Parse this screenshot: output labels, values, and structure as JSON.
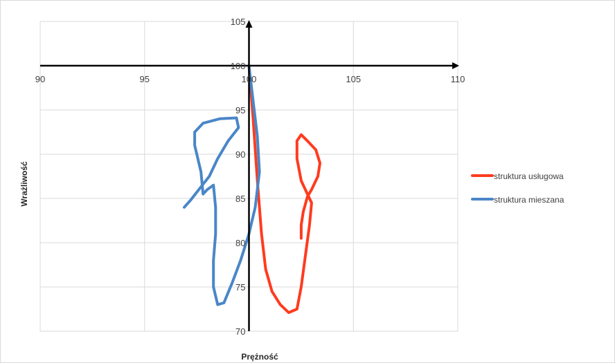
{
  "chart_data": {
    "type": "line",
    "title": "",
    "xlabel": "Prężność",
    "ylabel": "Wrażliwość",
    "xlim": [
      90,
      110
    ],
    "ylim": [
      70,
      105
    ],
    "x_ticks": [
      "90",
      "95",
      "100",
      "105",
      "110"
    ],
    "y_ticks": [
      "70",
      "75",
      "80",
      "85",
      "90",
      "95",
      "100",
      "105"
    ],
    "x_tick_values": [
      90,
      95,
      100,
      105,
      110
    ],
    "y_tick_values": [
      70,
      75,
      80,
      85,
      90,
      95,
      100,
      105
    ],
    "axis_crossing": {
      "x": 100,
      "y": 100
    },
    "grid": true,
    "legend_position": "right",
    "series": [
      {
        "name": "struktura usługowa",
        "color": "#ff3b1f",
        "points": [
          [
            100.0,
            100.0
          ],
          [
            100.2,
            94.0
          ],
          [
            100.4,
            87.0
          ],
          [
            100.6,
            81.0
          ],
          [
            100.8,
            77.0
          ],
          [
            101.1,
            74.5
          ],
          [
            101.5,
            73.0
          ],
          [
            101.9,
            72.1
          ],
          [
            102.3,
            72.5
          ],
          [
            102.5,
            75.0
          ],
          [
            102.7,
            78.5
          ],
          [
            102.9,
            82.0
          ],
          [
            103.0,
            84.5
          ],
          [
            102.8,
            85.5
          ],
          [
            102.5,
            87.0
          ],
          [
            102.3,
            89.5
          ],
          [
            102.3,
            91.5
          ],
          [
            102.5,
            92.2
          ],
          [
            102.8,
            91.5
          ],
          [
            103.2,
            90.5
          ],
          [
            103.4,
            89.0
          ],
          [
            103.3,
            87.5
          ],
          [
            103.0,
            86.0
          ],
          [
            102.8,
            85.2
          ],
          [
            102.6,
            83.5
          ],
          [
            102.5,
            82.0
          ],
          [
            102.5,
            80.5
          ]
        ]
      },
      {
        "name": "struktura mieszana",
        "color": "#4a86c8",
        "points": [
          [
            100.0,
            100.0
          ],
          [
            100.2,
            96.0
          ],
          [
            100.4,
            92.0
          ],
          [
            100.5,
            88.0
          ],
          [
            100.3,
            84.0
          ],
          [
            100.0,
            81.0
          ],
          [
            99.6,
            78.0
          ],
          [
            99.2,
            75.5
          ],
          [
            98.8,
            73.2
          ],
          [
            98.5,
            73.0
          ],
          [
            98.3,
            75.0
          ],
          [
            98.3,
            78.0
          ],
          [
            98.4,
            81.0
          ],
          [
            98.4,
            84.0
          ],
          [
            98.3,
            86.5
          ],
          [
            98.0,
            86.0
          ],
          [
            97.8,
            85.5
          ],
          [
            97.7,
            88.0
          ],
          [
            97.4,
            91.0
          ],
          [
            97.4,
            92.5
          ],
          [
            97.8,
            93.5
          ],
          [
            98.6,
            94.0
          ],
          [
            99.4,
            94.1
          ],
          [
            99.5,
            93.0
          ],
          [
            99.0,
            91.5
          ],
          [
            98.5,
            89.5
          ],
          [
            98.1,
            87.5
          ],
          [
            97.6,
            86.0
          ],
          [
            97.2,
            84.8
          ],
          [
            96.9,
            84.0
          ]
        ]
      }
    ]
  }
}
